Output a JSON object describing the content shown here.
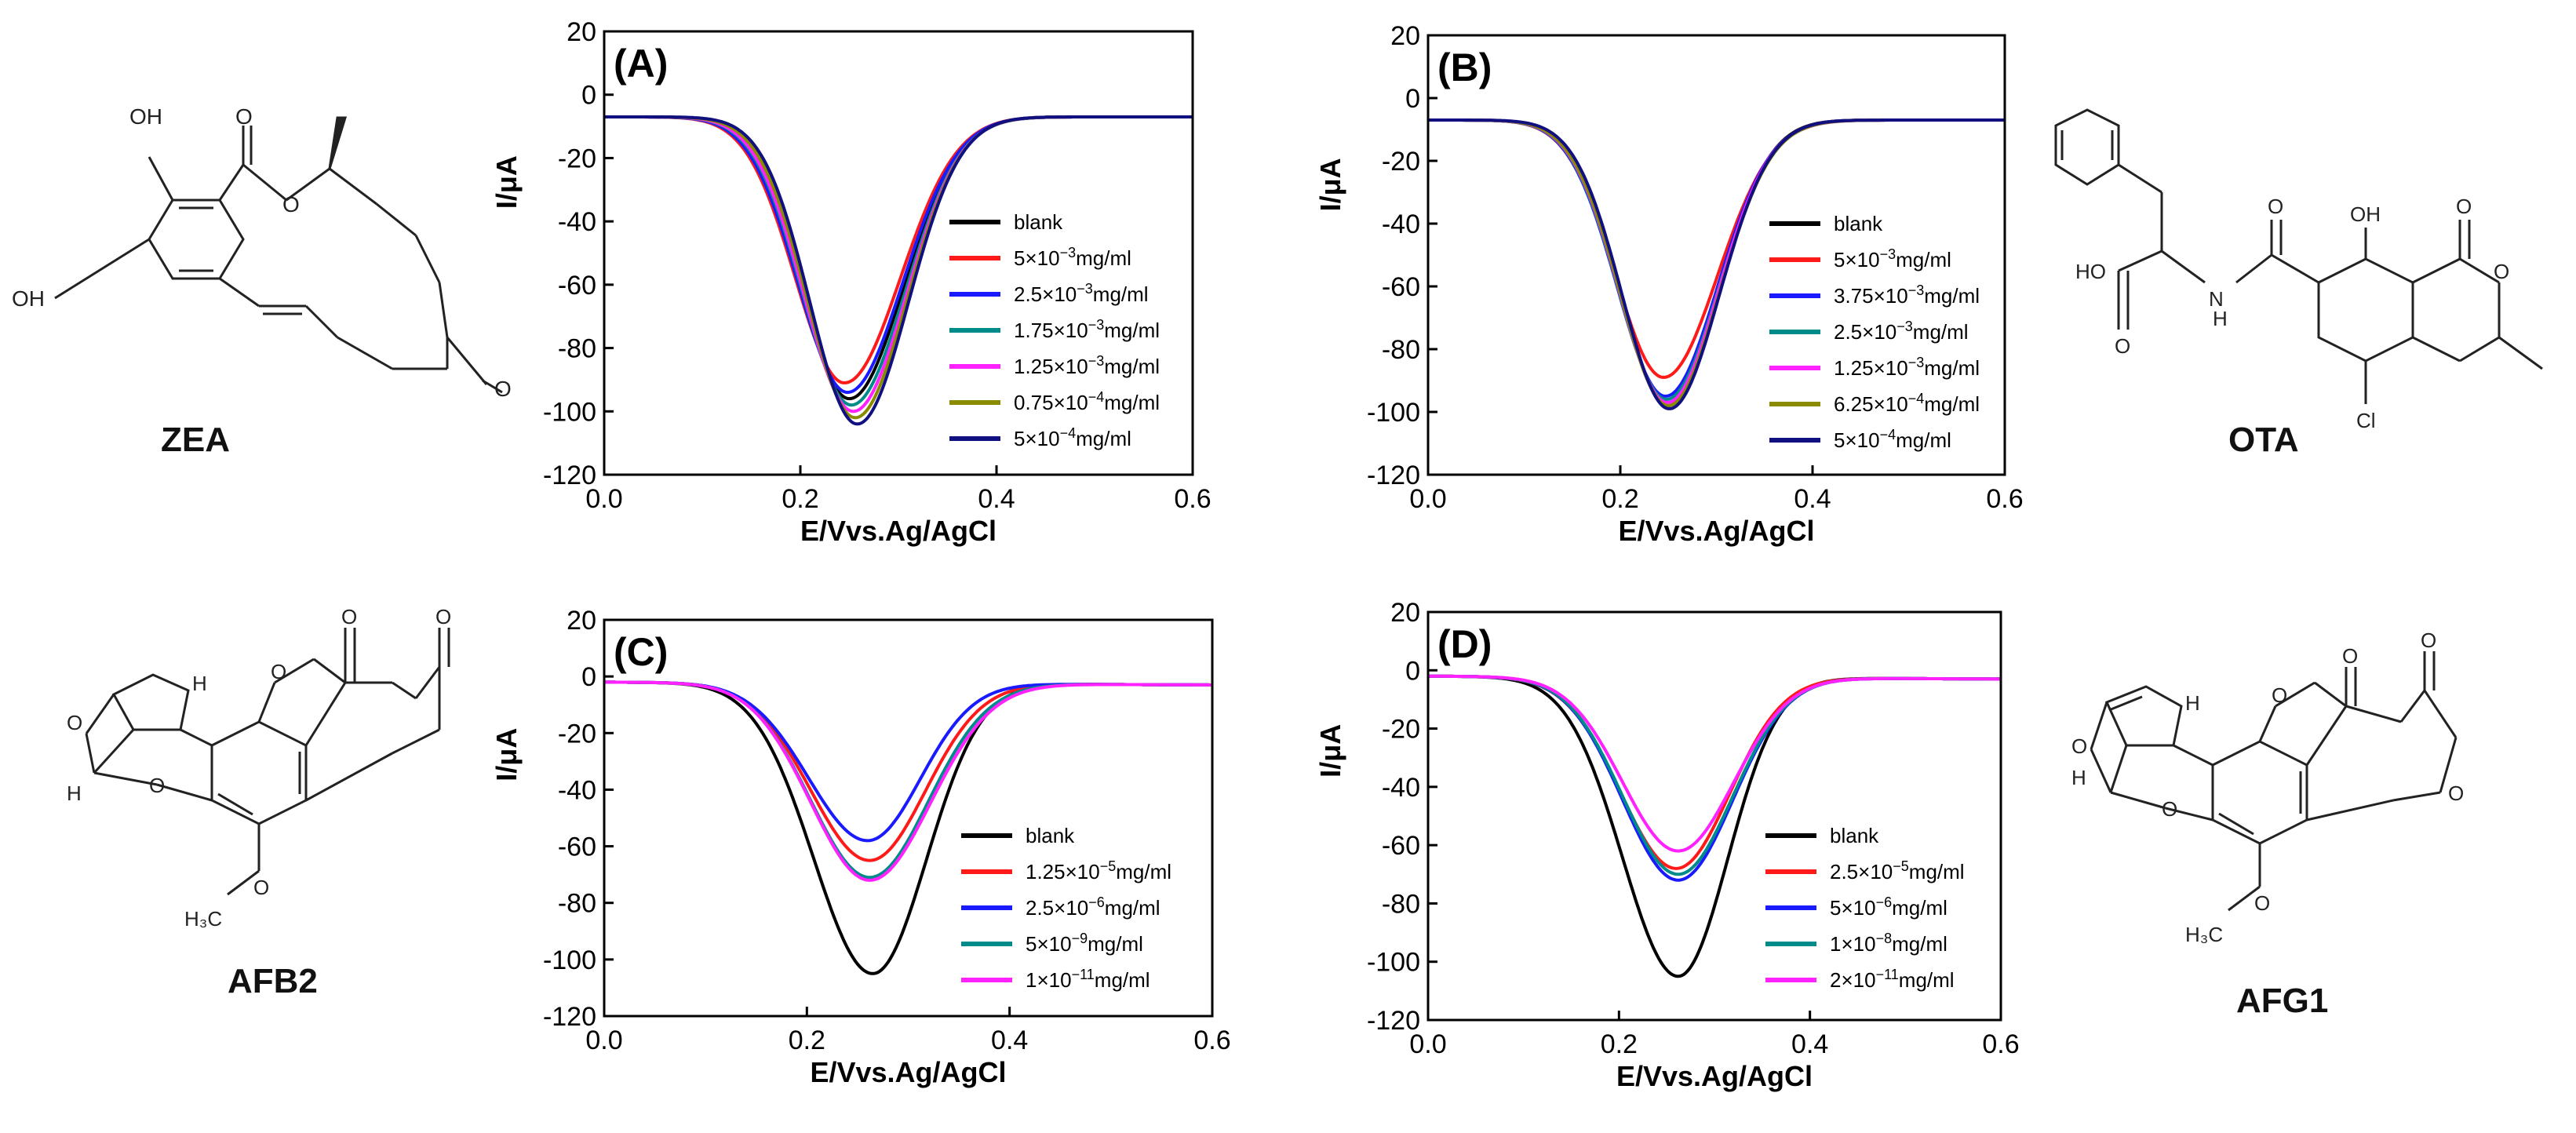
{
  "molecules": [
    {
      "name": "ZEA"
    },
    {
      "name": "OTA"
    },
    {
      "name": "AFB2"
    },
    {
      "name": "AFG1"
    }
  ],
  "colors": {
    "blank": "#000000",
    "red": "#ff1a1a",
    "blue": "#1a1aff",
    "teal": "#008b8b",
    "magenta": "#ff22ff",
    "olive": "#8b8b00",
    "navy": "#101080"
  },
  "chart_data": [
    {
      "type": "line",
      "panel_label": "(A)",
      "xlabel": "E/Vvs.Ag/AgCl",
      "ylabel": "I/μA",
      "xlim": [
        0.0,
        0.6
      ],
      "ylim": [
        -120,
        20
      ],
      "xticks": [
        "0.0",
        "0.2",
        "0.4",
        "0.6"
      ],
      "yticks": [
        "20",
        "0",
        "-20",
        "-40",
        "-60",
        "-80",
        "-100",
        "-120"
      ],
      "series": [
        {
          "name": "blank",
          "color": "#000000",
          "base": -7,
          "base_end": -7,
          "center": 0.25,
          "peak": -96,
          "sl": 0.05,
          "sr": 0.055
        },
        {
          "name": "5×10",
          "exp": "−3",
          "unit": "mg/ml",
          "color": "#ff1a1a",
          "base": -7,
          "base_end": -7,
          "center": 0.245,
          "peak": -91,
          "sl": 0.05,
          "sr": 0.057
        },
        {
          "name": "2.5×10",
          "exp": "−3",
          "unit": "mg/ml",
          "color": "#1a1aff",
          "base": -7,
          "base_end": -7,
          "center": 0.248,
          "peak": -94,
          "sl": 0.05,
          "sr": 0.056
        },
        {
          "name": "1.75×10",
          "exp": "−3",
          "unit": "mg/ml",
          "color": "#008b8b",
          "base": -7,
          "base_end": -7,
          "center": 0.252,
          "peak": -98,
          "sl": 0.05,
          "sr": 0.055
        },
        {
          "name": "1.25×10",
          "exp": "−3",
          "unit": "mg/ml",
          "color": "#ff22ff",
          "base": -7,
          "base_end": -7,
          "center": 0.254,
          "peak": -100,
          "sl": 0.05,
          "sr": 0.054
        },
        {
          "name": "0.75×10",
          "exp": "−4",
          "unit": "mg/ml",
          "color": "#8b8b00",
          "base": -7,
          "base_end": -7,
          "center": 0.256,
          "peak": -102,
          "sl": 0.049,
          "sr": 0.053
        },
        {
          "name": "5×10",
          "exp": "−4",
          "unit": "mg/ml",
          "color": "#101080",
          "base": -7,
          "base_end": -7,
          "center": 0.258,
          "peak": -104,
          "sl": 0.048,
          "sr": 0.052
        }
      ]
    },
    {
      "type": "line",
      "panel_label": "(B)",
      "xlabel": "E/Vvs.Ag/AgCl",
      "ylabel": "I/μA",
      "xlim": [
        0.0,
        0.6
      ],
      "ylim": [
        -120,
        20
      ],
      "xticks": [
        "0.0",
        "0.2",
        "0.4",
        "0.6"
      ],
      "yticks": [
        "20",
        "0",
        "-20",
        "-40",
        "-60",
        "-80",
        "-100",
        "-120"
      ],
      "series": [
        {
          "name": "blank",
          "color": "#000000",
          "base": -7,
          "base_end": -7,
          "center": 0.25,
          "peak": -98,
          "sl": 0.05,
          "sr": 0.052
        },
        {
          "name": "5×10",
          "exp": "−3",
          "unit": "mg/ml",
          "color": "#ff1a1a",
          "base": -7,
          "base_end": -7,
          "center": 0.245,
          "peak": -89,
          "sl": 0.05,
          "sr": 0.056
        },
        {
          "name": "3.75×10",
          "exp": "−3",
          "unit": "mg/ml",
          "color": "#1a1aff",
          "base": -7,
          "base_end": -7,
          "center": 0.247,
          "peak": -95,
          "sl": 0.05,
          "sr": 0.054
        },
        {
          "name": "2.5×10",
          "exp": "−3",
          "unit": "mg/ml",
          "color": "#008b8b",
          "base": -7,
          "base_end": -7,
          "center": 0.248,
          "peak": -96,
          "sl": 0.05,
          "sr": 0.054
        },
        {
          "name": "1.25×10",
          "exp": "−3",
          "unit": "mg/ml",
          "color": "#ff22ff",
          "base": -7,
          "base_end": -7,
          "center": 0.249,
          "peak": -97,
          "sl": 0.05,
          "sr": 0.053
        },
        {
          "name": "6.25×10",
          "exp": "−4",
          "unit": "mg/ml",
          "color": "#8b8b00",
          "base": -7,
          "base_end": -7,
          "center": 0.25,
          "peak": -98,
          "sl": 0.05,
          "sr": 0.053
        },
        {
          "name": "5×10",
          "exp": "−4",
          "unit": "mg/ml",
          "color": "#101080",
          "base": -7,
          "base_end": -7,
          "center": 0.251,
          "peak": -99,
          "sl": 0.049,
          "sr": 0.052
        }
      ]
    },
    {
      "type": "line",
      "panel_label": "(C)",
      "xlabel": "E/Vvs.Ag/AgCl",
      "ylabel": "I/μA",
      "xlim": [
        0.0,
        0.6
      ],
      "ylim": [
        -120,
        20
      ],
      "xticks": [
        "0.0",
        "0.2",
        "0.4",
        "0.6"
      ],
      "yticks": [
        "20",
        "0",
        "-20",
        "-40",
        "-60",
        "-80",
        "-100",
        "-120"
      ],
      "series": [
        {
          "name": "blank",
          "color": "#000000",
          "base": -2,
          "base_end": -3,
          "center": 0.265,
          "peak": -105,
          "sl": 0.058,
          "sr": 0.053
        },
        {
          "name": "1.25×10",
          "exp": "−5",
          "unit": "mg/ml",
          "color": "#ff1a1a",
          "base": -2,
          "base_end": -3,
          "center": 0.262,
          "peak": -65,
          "sl": 0.058,
          "sr": 0.055
        },
        {
          "name": "2.5×10",
          "exp": "−6",
          "unit": "mg/ml",
          "color": "#1a1aff",
          "base": -2,
          "base_end": -3,
          "center": 0.26,
          "peak": -58,
          "sl": 0.058,
          "sr": 0.052
        },
        {
          "name": "5×10",
          "exp": "−9",
          "unit": "mg/ml",
          "color": "#008b8b",
          "base": -2,
          "base_end": -3,
          "center": 0.262,
          "peak": -71,
          "sl": 0.058,
          "sr": 0.058
        },
        {
          "name": "1×10",
          "exp": "−11",
          "unit": "mg/ml",
          "color": "#ff22ff",
          "base": -2,
          "base_end": -3,
          "center": 0.262,
          "peak": -72,
          "sl": 0.058,
          "sr": 0.06
        }
      ]
    },
    {
      "type": "line",
      "panel_label": "(D)",
      "xlabel": "E/Vvs.Ag/AgCl",
      "ylabel": "I/μA",
      "xlim": [
        0.0,
        0.6
      ],
      "ylim": [
        -120,
        20
      ],
      "xticks": [
        "0.0",
        "0.2",
        "0.4",
        "0.6"
      ],
      "yticks": [
        "20",
        "0",
        "-20",
        "-40",
        "-60",
        "-80",
        "-100",
        "-120"
      ],
      "series": [
        {
          "name": "blank",
          "color": "#000000",
          "base": -2,
          "base_end": -3,
          "center": 0.262,
          "peak": -105,
          "sl": 0.058,
          "sr": 0.052
        },
        {
          "name": "2.5×10",
          "exp": "−5",
          "unit": "mg/ml",
          "color": "#ff1a1a",
          "base": -2,
          "base_end": -3,
          "center": 0.26,
          "peak": -68,
          "sl": 0.058,
          "sr": 0.056
        },
        {
          "name": "5×10",
          "exp": "−6",
          "unit": "mg/ml",
          "color": "#1a1aff",
          "base": -2,
          "base_end": -3,
          "center": 0.262,
          "peak": -72,
          "sl": 0.058,
          "sr": 0.057
        },
        {
          "name": "1×10",
          "exp": "−8",
          "unit": "mg/ml",
          "color": "#008b8b",
          "base": -2,
          "base_end": -3,
          "center": 0.262,
          "peak": -70,
          "sl": 0.058,
          "sr": 0.057
        },
        {
          "name": "2×10",
          "exp": "−11",
          "unit": "mg/ml",
          "color": "#ff22ff",
          "base": -2,
          "base_end": -3,
          "center": 0.262,
          "peak": -62,
          "sl": 0.058,
          "sr": 0.058
        }
      ]
    }
  ]
}
